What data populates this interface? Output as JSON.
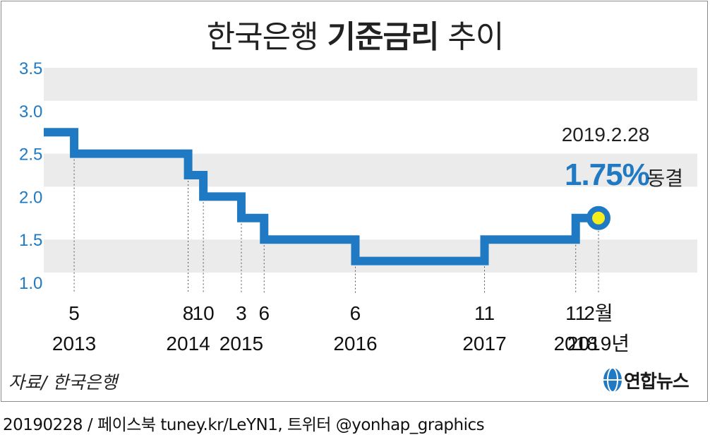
{
  "title": {
    "regular_1": "한국은행 ",
    "bold": "기준금리",
    "regular_2": " 추이"
  },
  "source": "자료/ 한국은행",
  "logo": {
    "text": "연합뉴스"
  },
  "footer": "20190228 / 페이스북 tuney.kr/LeYN1, 트위터 @yonhap_graphics",
  "annotation": {
    "date": "2019.2.28",
    "value_label": "1.75%",
    "note": "동결"
  },
  "colors": {
    "line": "#1f7ac3",
    "band": "#ebebeb",
    "axis_label": "#1f7ac3",
    "dot": "#f4ec1c"
  },
  "chart_data": {
    "type": "line",
    "step": true,
    "title": "한국은행 기준금리 추이",
    "xlabel": "",
    "ylabel": "",
    "ylim": [
      1.0,
      3.5
    ],
    "yticks": [
      1.0,
      1.5,
      2.0,
      2.5,
      3.0,
      3.5
    ],
    "ytick_labels": [
      "1.0",
      "1.5",
      "2.0",
      "2.5",
      "3.0",
      "3.5"
    ],
    "series": [
      {
        "points": [
          {
            "date": "2013-01",
            "rate": 2.75
          },
          {
            "date": "2013-05",
            "rate": 2.5
          },
          {
            "date": "2014-08",
            "rate": 2.25
          },
          {
            "date": "2014-10",
            "rate": 2.0
          },
          {
            "date": "2015-03",
            "rate": 1.75
          },
          {
            "date": "2015-06",
            "rate": 1.5
          },
          {
            "date": "2016-06",
            "rate": 1.25
          },
          {
            "date": "2017-11",
            "rate": 1.5
          },
          {
            "date": "2018-11",
            "rate": 1.75
          },
          {
            "date": "2019-02",
            "rate": 1.75
          }
        ]
      }
    ],
    "x_labels": [
      {
        "date": "2013-05",
        "month": "5",
        "year": "2013"
      },
      {
        "date": "2014-08",
        "month": "8",
        "year": "2014"
      },
      {
        "date": "2014-10",
        "month": "10",
        "year": ""
      },
      {
        "date": "2015-03",
        "month": "3",
        "year": "2015"
      },
      {
        "date": "2015-06",
        "month": "6",
        "year": ""
      },
      {
        "date": "2016-06",
        "month": "6",
        "year": "2016"
      },
      {
        "date": "2017-11",
        "month": "11",
        "year": "2017"
      },
      {
        "date": "2018-11",
        "month": "11",
        "year": "2018"
      },
      {
        "date": "2019-02",
        "month": "2월",
        "year": "2019년"
      }
    ],
    "x_range": [
      "2013-01",
      "2020-03"
    ]
  }
}
